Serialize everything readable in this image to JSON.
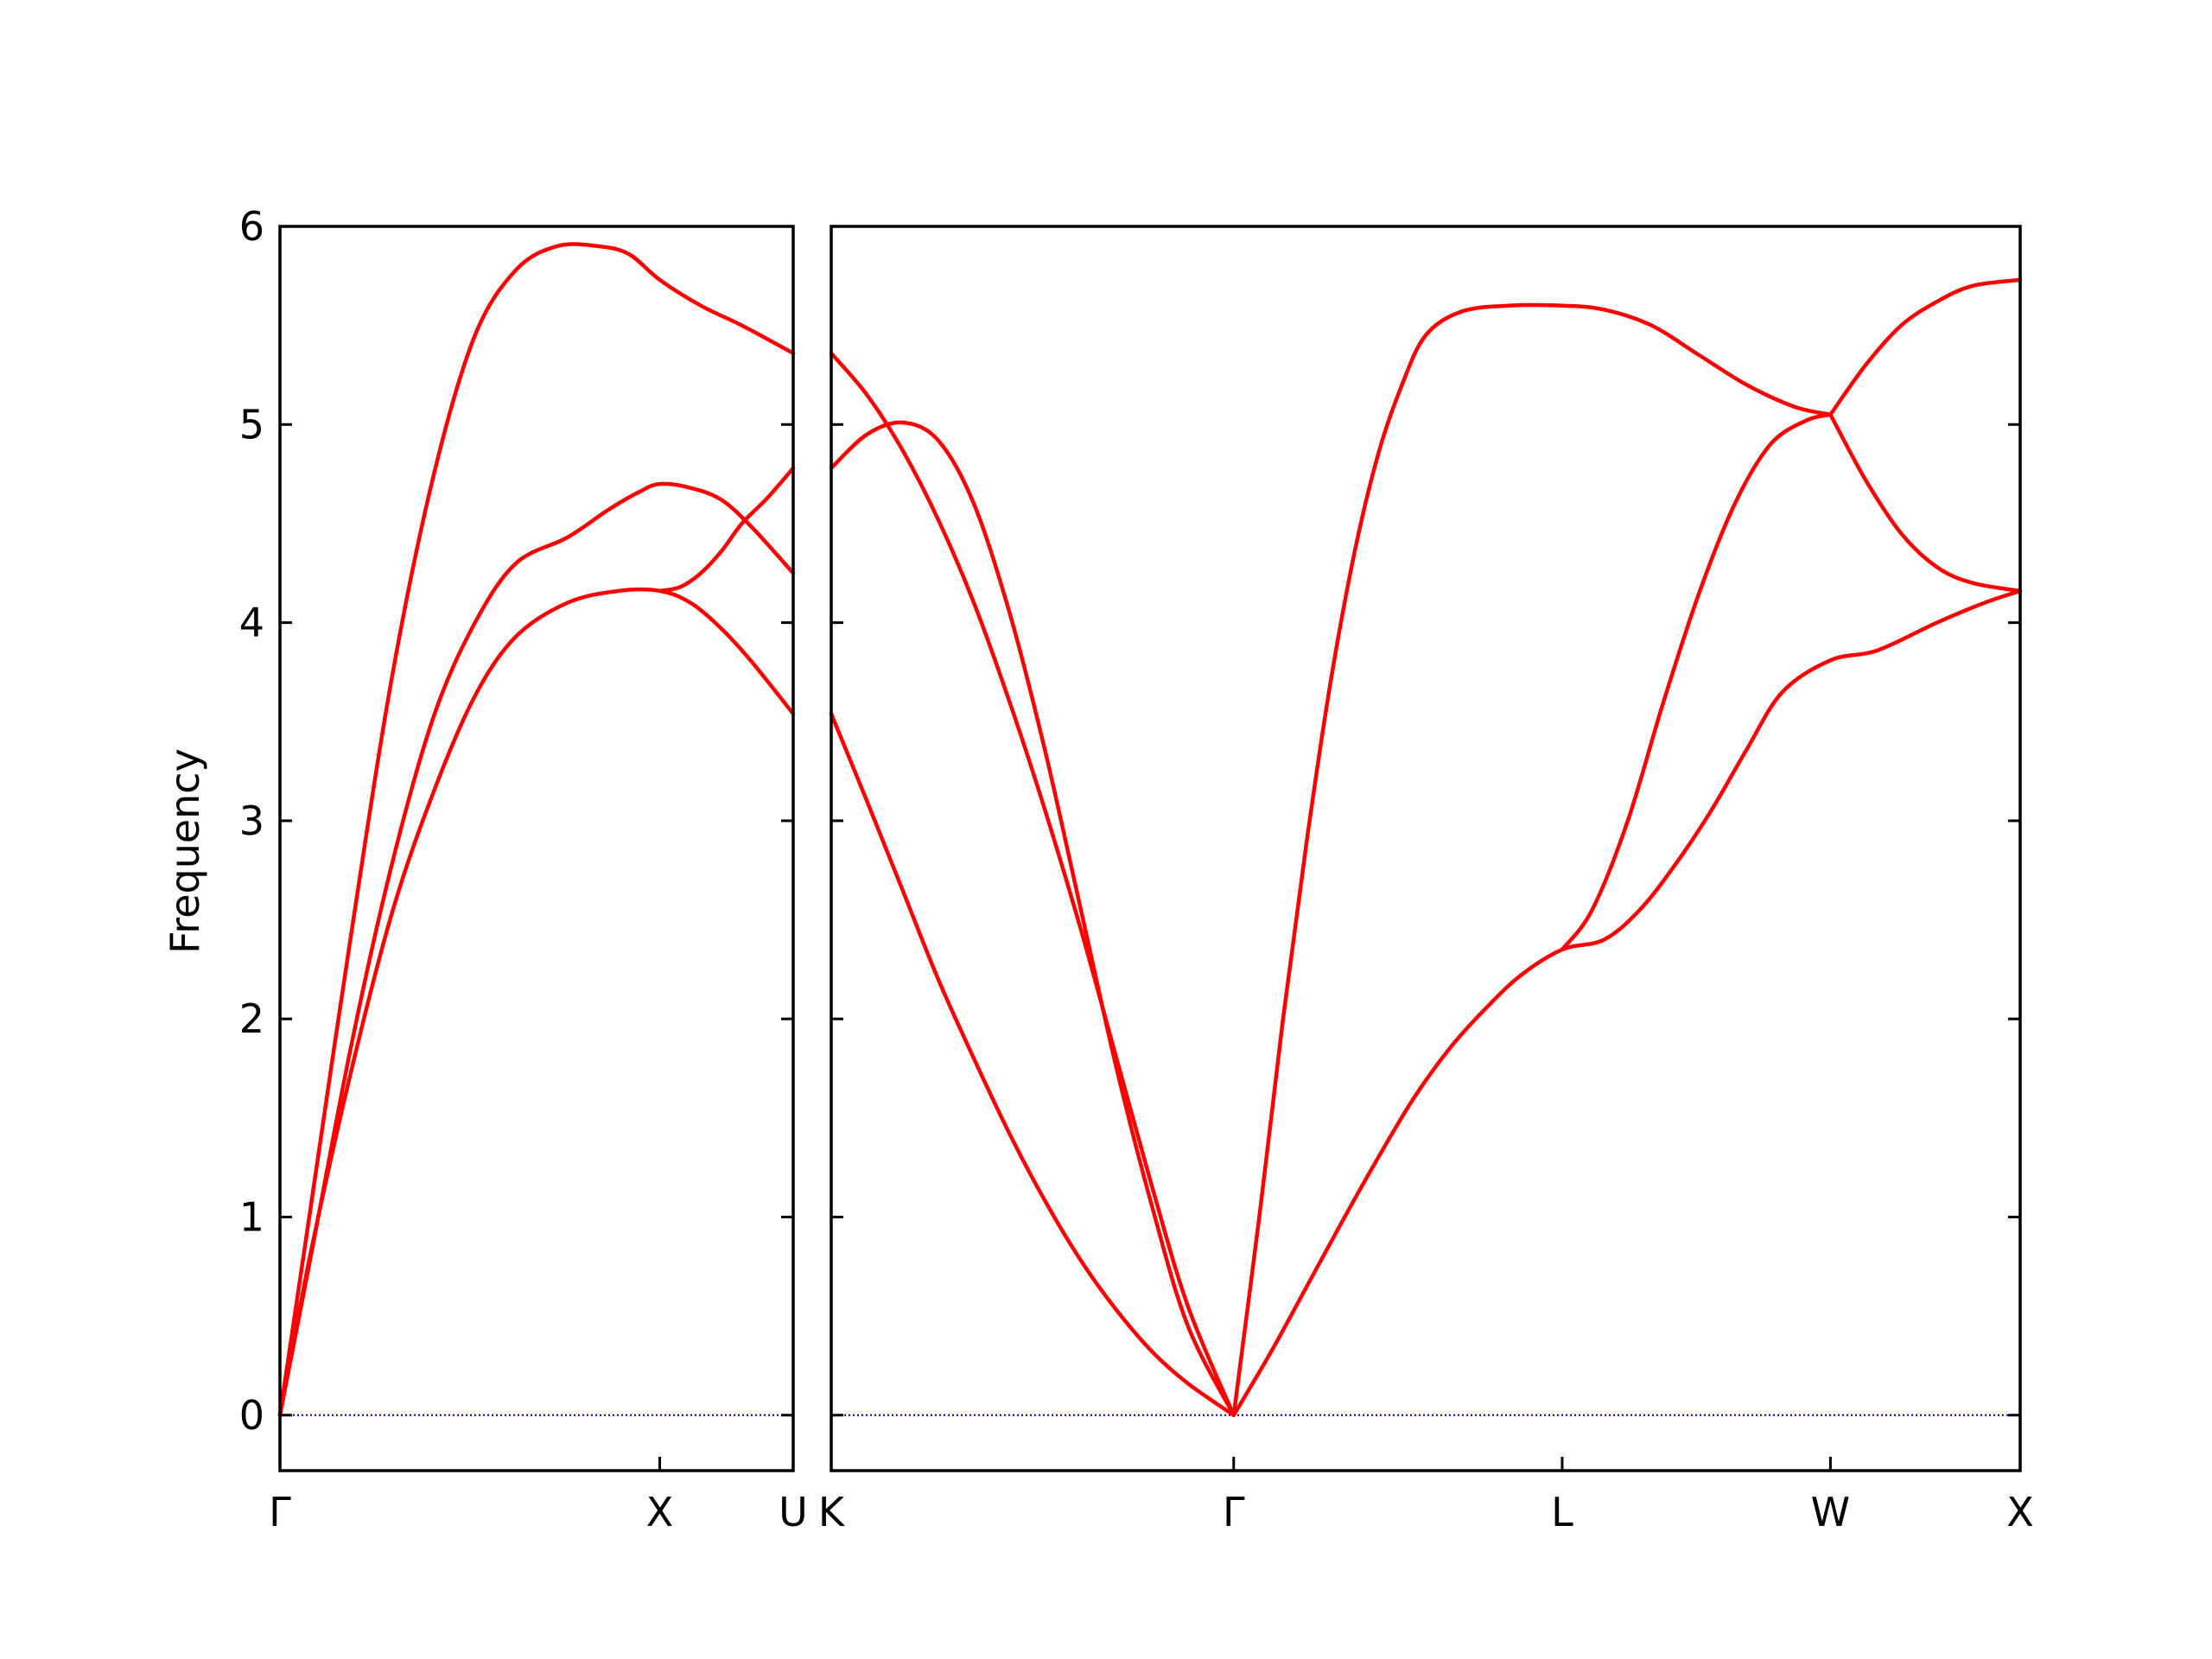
{
  "chart_data": {
    "type": "line",
    "title": "",
    "ylabel": "Frequency",
    "xlabel": "",
    "ylim": [
      -0.28,
      6
    ],
    "y_ticks": [
      "0",
      "1",
      "2",
      "3",
      "4",
      "5",
      "6"
    ],
    "grid": false,
    "legend": "none",
    "colors": {
      "band": "#ff0000",
      "zero_line": "#0000cc",
      "axes": "#000000"
    },
    "panels": [
      {
        "name": "left",
        "x_range": [
          0,
          1
        ],
        "ticks": [
          {
            "x": 0,
            "label": "Γ"
          },
          {
            "x": 0.74,
            "label": "X"
          },
          {
            "x": 1,
            "label": "U"
          }
        ],
        "series": [
          {
            "points": [
              [
                0,
                0
              ],
              [
                0.06,
                0.8
              ],
              [
                0.14,
                1.88
              ],
              [
                0.22,
                2.8
              ],
              [
                0.3,
                3.53
              ],
              [
                0.38,
                4.0
              ],
              [
                0.46,
                4.3
              ],
              [
                0.56,
                4.43
              ],
              [
                0.64,
                4.57
              ],
              [
                0.7,
                4.66
              ],
              [
                0.74,
                4.7
              ],
              [
                0.8,
                4.68
              ],
              [
                0.86,
                4.62
              ],
              [
                0.92,
                4.48
              ],
              [
                1,
                4.25
              ]
            ]
          },
          {
            "points": [
              [
                0,
                0
              ],
              [
                0.06,
                1.05
              ],
              [
                0.14,
                2.45
              ],
              [
                0.22,
                3.75
              ],
              [
                0.3,
                4.75
              ],
              [
                0.38,
                5.45
              ],
              [
                0.46,
                5.78
              ],
              [
                0.54,
                5.9
              ],
              [
                0.62,
                5.9
              ],
              [
                0.68,
                5.86
              ],
              [
                0.74,
                5.73
              ],
              [
                0.82,
                5.6
              ],
              [
                0.9,
                5.5
              ],
              [
                1,
                5.36
              ]
            ]
          },
          {
            "points": [
              [
                0,
                0
              ],
              [
                0.06,
                0.82
              ],
              [
                0.14,
                1.75
              ],
              [
                0.22,
                2.55
              ],
              [
                0.3,
                3.15
              ],
              [
                0.38,
                3.63
              ],
              [
                0.46,
                3.93
              ],
              [
                0.56,
                4.1
              ],
              [
                0.66,
                4.16
              ],
              [
                0.74,
                4.16
              ],
              [
                0.8,
                4.1
              ],
              [
                0.86,
                3.97
              ],
              [
                0.92,
                3.8
              ],
              [
                1,
                3.54
              ]
            ]
          },
          {
            "points": [
              [
                0.74,
                4.16
              ],
              [
                0.78,
                4.18
              ],
              [
                0.82,
                4.25
              ],
              [
                0.86,
                4.36
              ],
              [
                0.9,
                4.5
              ],
              [
                0.95,
                4.63
              ],
              [
                1,
                4.78
              ]
            ]
          }
        ]
      },
      {
        "name": "right",
        "x_range": [
          0,
          1
        ],
        "ticks": [
          {
            "x": 0,
            "label": "K"
          },
          {
            "x": 0.3385,
            "label": "Γ"
          },
          {
            "x": 0.6148,
            "label": "L"
          },
          {
            "x": 0.8404,
            "label": "W"
          },
          {
            "x": 1,
            "label": "X"
          }
        ],
        "series": [
          {
            "points": [
              [
                0,
                3.54
              ],
              [
                0.03,
                3.1
              ],
              [
                0.06,
                2.65
              ],
              [
                0.09,
                2.2
              ],
              [
                0.12,
                1.8
              ],
              [
                0.15,
                1.42
              ],
              [
                0.18,
                1.08
              ],
              [
                0.21,
                0.78
              ],
              [
                0.24,
                0.53
              ],
              [
                0.27,
                0.32
              ],
              [
                0.3,
                0.16
              ],
              [
                0.3385,
                0
              ]
            ]
          },
          {
            "points": [
              [
                0,
                5.36
              ],
              [
                0.03,
                5.15
              ],
              [
                0.06,
                4.87
              ],
              [
                0.09,
                4.52
              ],
              [
                0.12,
                4.1
              ],
              [
                0.15,
                3.6
              ],
              [
                0.18,
                3.05
              ],
              [
                0.21,
                2.45
              ],
              [
                0.24,
                1.8
              ],
              [
                0.27,
                1.15
              ],
              [
                0.3,
                0.55
              ],
              [
                0.3385,
                0
              ]
            ]
          },
          {
            "points": [
              [
                0,
                4.78
              ],
              [
                0.03,
                4.95
              ],
              [
                0.06,
                5.01
              ],
              [
                0.09,
                4.92
              ],
              [
                0.12,
                4.6
              ],
              [
                0.15,
                4.05
              ],
              [
                0.18,
                3.35
              ],
              [
                0.21,
                2.55
              ],
              [
                0.24,
                1.75
              ],
              [
                0.27,
                1.05
              ],
              [
                0.3,
                0.45
              ],
              [
                0.3385,
                0
              ]
            ]
          },
          {
            "points": [
              [
                0.3385,
                0
              ],
              [
                0.37,
                0.32
              ],
              [
                0.4,
                0.65
              ],
              [
                0.43,
                0.98
              ],
              [
                0.46,
                1.3
              ],
              [
                0.49,
                1.6
              ],
              [
                0.52,
                1.85
              ],
              [
                0.55,
                2.05
              ],
              [
                0.58,
                2.22
              ],
              [
                0.6148,
                2.35
              ],
              [
                0.65,
                2.4
              ],
              [
                0.68,
                2.55
              ],
              [
                0.71,
                2.78
              ],
              [
                0.74,
                3.05
              ],
              [
                0.77,
                3.36
              ],
              [
                0.8,
                3.65
              ],
              [
                0.8404,
                3.81
              ],
              [
                0.88,
                3.86
              ],
              [
                0.93,
                4.0
              ],
              [
                0.97,
                4.1
              ],
              [
                1,
                4.16
              ]
            ]
          },
          {
            "points": [
              [
                0.3385,
                0
              ],
              [
                0.36,
                1.0
              ],
              [
                0.38,
                2.0
              ],
              [
                0.4,
                2.9
              ],
              [
                0.42,
                3.7
              ],
              [
                0.44,
                4.35
              ],
              [
                0.46,
                4.85
              ],
              [
                0.48,
                5.2
              ],
              [
                0.5,
                5.45
              ],
              [
                0.53,
                5.57
              ],
              [
                0.57,
                5.6
              ],
              [
                0.6148,
                5.6
              ],
              [
                0.65,
                5.58
              ],
              [
                0.69,
                5.5
              ],
              [
                0.73,
                5.35
              ],
              [
                0.77,
                5.2
              ],
              [
                0.81,
                5.09
              ],
              [
                0.8404,
                5.05
              ]
            ]
          },
          {
            "points": [
              [
                0.6148,
                2.35
              ],
              [
                0.64,
                2.55
              ],
              [
                0.67,
                3.0
              ],
              [
                0.7,
                3.6
              ],
              [
                0.73,
                4.15
              ],
              [
                0.76,
                4.6
              ],
              [
                0.79,
                4.9
              ],
              [
                0.82,
                5.02
              ],
              [
                0.8404,
                5.05
              ]
            ]
          },
          {
            "points": [
              [
                0.8404,
                5.05
              ],
              [
                0.87,
                5.3
              ],
              [
                0.9,
                5.5
              ],
              [
                0.93,
                5.62
              ],
              [
                0.96,
                5.7
              ],
              [
                1,
                5.73
              ]
            ]
          },
          {
            "points": [
              [
                0.8404,
                5.05
              ],
              [
                0.87,
                4.72
              ],
              [
                0.9,
                4.45
              ],
              [
                0.93,
                4.28
              ],
              [
                0.96,
                4.2
              ],
              [
                1,
                4.16
              ]
            ]
          }
        ]
      }
    ]
  }
}
